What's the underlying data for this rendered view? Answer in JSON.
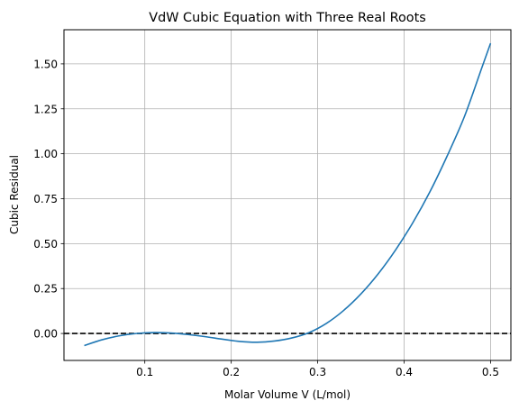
{
  "chart_data": {
    "type": "line",
    "title": "VdW Cubic Equation with Three Real Roots",
    "xlabel": "Molar Volume V (L/mol)",
    "ylabel": "Cubic Residual",
    "xlim": [
      0.0065,
      0.5235
    ],
    "ylim": [
      -0.15,
      1.69
    ],
    "xticks": [
      0.1,
      0.2,
      0.3,
      0.4,
      0.5
    ],
    "xtick_labels": [
      "0.1",
      "0.2",
      "0.3",
      "0.4",
      "0.5"
    ],
    "yticks": [
      0.0,
      0.25,
      0.5,
      0.75,
      1.0,
      1.25,
      1.5
    ],
    "ytick_labels": [
      "0.00",
      "0.25",
      "0.50",
      "0.75",
      "1.00",
      "1.25",
      "1.50"
    ],
    "grid": true,
    "reference_line": {
      "y": 0,
      "style": "dashed",
      "color": "#000000"
    },
    "series": [
      {
        "color": "#1f77b4",
        "x": [
          0.03,
          0.05,
          0.07,
          0.09,
          0.11,
          0.13,
          0.15,
          0.17,
          0.19,
          0.21,
          0.23,
          0.25,
          0.27,
          0.29,
          0.31,
          0.33,
          0.35,
          0.37,
          0.39,
          0.41,
          0.43,
          0.45,
          0.47,
          0.49,
          0.5
        ],
        "y": [
          -0.0675,
          -0.0356,
          -0.0135,
          -0.0003,
          0.005,
          0.0028,
          -0.0058,
          -0.0178,
          -0.032,
          -0.0444,
          -0.0488,
          -0.042,
          -0.025,
          0.005,
          0.056,
          0.128,
          0.22,
          0.332,
          0.464,
          0.616,
          0.79,
          0.99,
          1.21,
          1.48,
          1.615
        ]
      }
    ]
  }
}
